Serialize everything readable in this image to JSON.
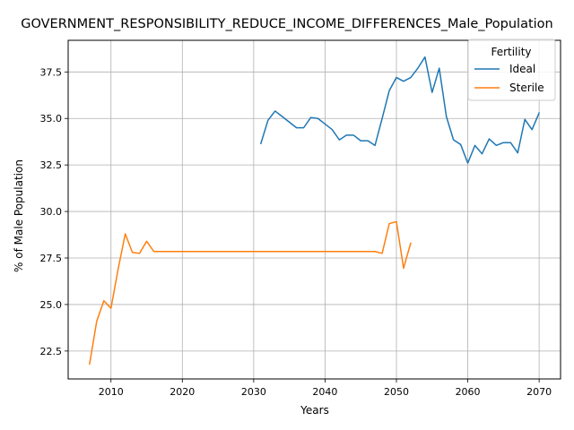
{
  "chart_data": {
    "type": "line",
    "title": "GOVERNMENT_RESPONSIBILITY_REDUCE_INCOME_DIFFERENCES_Male_Population",
    "xlabel": "Years",
    "ylabel": "% of Male Population",
    "xlim": [
      2004,
      2073
    ],
    "ylim": [
      21.0,
      39.2
    ],
    "x_ticks": [
      2010,
      2020,
      2030,
      2040,
      2050,
      2060,
      2070
    ],
    "y_ticks": [
      22.5,
      25.0,
      27.5,
      30.0,
      32.5,
      35.0,
      37.5
    ],
    "grid": true,
    "legend": {
      "title": "Fertility",
      "placement": "top-right"
    },
    "series": [
      {
        "name": "Ideal",
        "color": "#1f77b4",
        "x": [
          2031,
          2032,
          2033,
          2034,
          2035,
          2036,
          2037,
          2038,
          2039,
          2040,
          2041,
          2042,
          2043,
          2044,
          2045,
          2046,
          2047,
          2048,
          2049,
          2050,
          2051,
          2052,
          2053,
          2054,
          2055,
          2056,
          2057,
          2058,
          2059,
          2060,
          2061,
          2062,
          2063,
          2064,
          2065,
          2066,
          2067,
          2068,
          2069,
          2070
        ],
        "values": [
          33.65,
          34.9,
          35.4,
          35.1,
          34.8,
          34.5,
          34.5,
          35.05,
          35.0,
          34.7,
          34.4,
          33.85,
          34.1,
          34.1,
          33.8,
          33.8,
          33.55,
          35.0,
          36.5,
          37.2,
          37.0,
          37.2,
          37.7,
          38.3,
          36.4,
          37.7,
          35.1,
          33.85,
          33.6,
          32.6,
          33.55,
          33.1,
          33.9,
          33.55,
          33.7,
          33.7,
          33.15,
          34.95,
          34.4,
          35.3
        ]
      },
      {
        "name": "Sterile",
        "color": "#ff7f0e",
        "x": [
          2007,
          2008,
          2009,
          2010,
          2011,
          2012,
          2013,
          2014,
          2015,
          2016,
          2017,
          2018,
          2019,
          2020,
          2021,
          2022,
          2023,
          2024,
          2025,
          2026,
          2027,
          2028,
          2029,
          2030,
          2031,
          2032,
          2033,
          2034,
          2035,
          2036,
          2037,
          2038,
          2039,
          2040,
          2041,
          2042,
          2043,
          2044,
          2045,
          2046,
          2047,
          2048,
          2049,
          2050,
          2051,
          2052
        ],
        "values": [
          21.8,
          24.1,
          25.2,
          24.8,
          26.9,
          28.8,
          27.8,
          27.75,
          28.4,
          27.85,
          27.85,
          27.85,
          27.85,
          27.85,
          27.85,
          27.85,
          27.85,
          27.85,
          27.85,
          27.85,
          27.85,
          27.85,
          27.85,
          27.85,
          27.85,
          27.85,
          27.85,
          27.85,
          27.85,
          27.85,
          27.85,
          27.85,
          27.85,
          27.85,
          27.85,
          27.85,
          27.85,
          27.85,
          27.85,
          27.85,
          27.85,
          27.75,
          29.35,
          29.45,
          26.95,
          28.3
        ]
      }
    ]
  }
}
